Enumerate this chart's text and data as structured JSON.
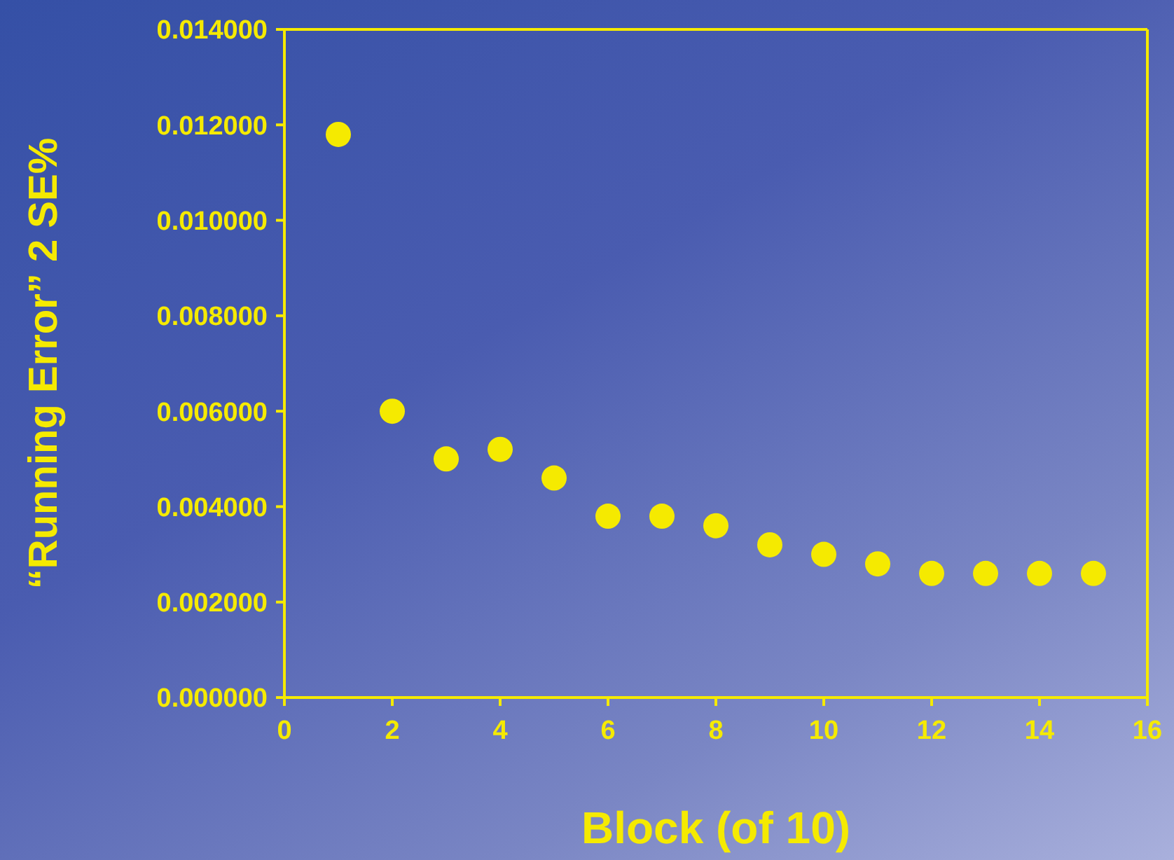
{
  "chart_data": {
    "type": "scatter",
    "xlabel": "Block (of 10)",
    "ylabel": "“Running Error” 2 SE%",
    "x": [
      1,
      2,
      3,
      4,
      5,
      6,
      7,
      8,
      9,
      10,
      11,
      12,
      13,
      14,
      15
    ],
    "series": [
      {
        "color": "#f5ea00",
        "values": [
          0.0118,
          0.006,
          0.005,
          0.0052,
          0.0046,
          0.0038,
          0.0038,
          0.0036,
          0.0032,
          0.003,
          0.0028,
          0.0026,
          0.0026,
          0.0026,
          0.0026
        ]
      }
    ],
    "xlim": [
      0,
      16
    ],
    "xticks": [
      0,
      2,
      4,
      6,
      8,
      10,
      12,
      14,
      16
    ],
    "ylim": [
      0,
      0.014
    ],
    "yticks": [
      {
        "value": 0,
        "label": "0.000000"
      },
      {
        "value": 0.002,
        "label": "0.002000"
      },
      {
        "value": 0.004,
        "label": "0.004000"
      },
      {
        "value": 0.006,
        "label": "0.006000"
      },
      {
        "value": 0.008,
        "label": "0.008000"
      },
      {
        "value": 0.01,
        "label": "0.010000"
      },
      {
        "value": 0.012,
        "label": "0.012000"
      },
      {
        "value": 0.014,
        "label": "0.014000"
      }
    ],
    "grid": false,
    "legend": false,
    "marker": "circle"
  }
}
